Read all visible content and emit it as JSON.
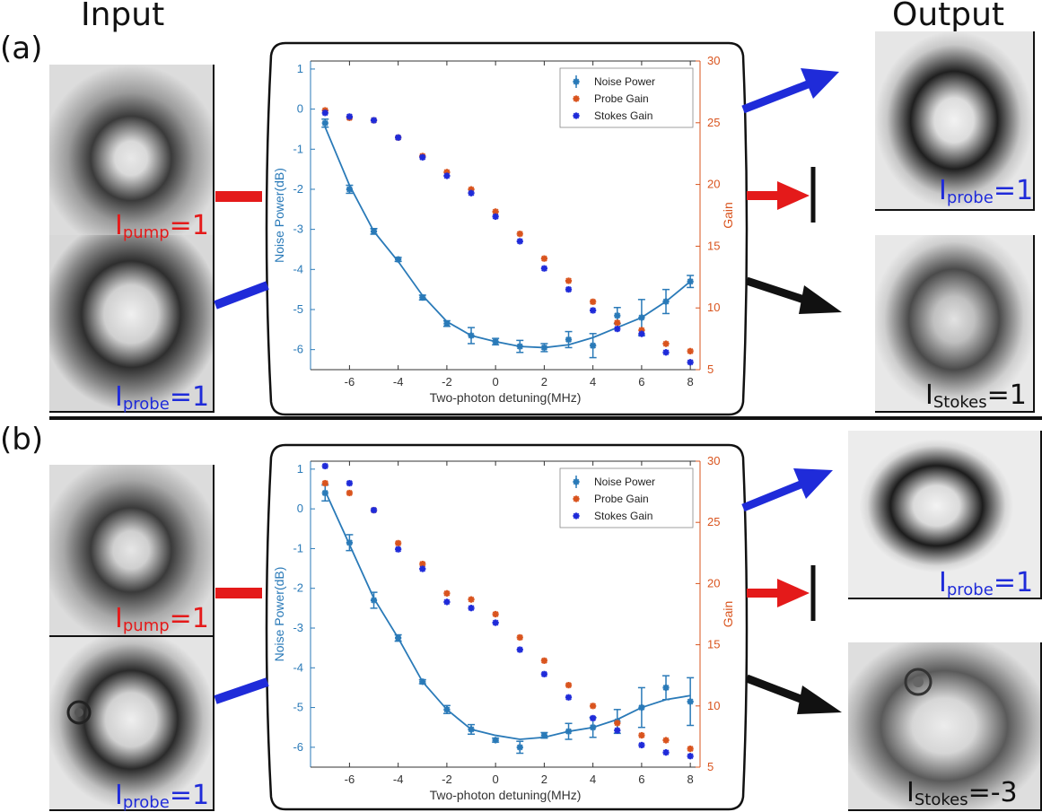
{
  "headers": {
    "input": "Input",
    "output": "Output"
  },
  "panels": [
    {
      "label": "(a)",
      "input_labels": {
        "pump": {
          "symbol": "I",
          "sub": "pump",
          "eq": "=1"
        },
        "probe": {
          "symbol": "I",
          "sub": "probe",
          "eq": "=1"
        }
      },
      "output_labels": {
        "probe": {
          "symbol": "I",
          "sub": "probe",
          "eq": "=1"
        },
        "stokes": {
          "symbol": "I",
          "sub": "Stokes",
          "eq": "=1"
        }
      }
    },
    {
      "label": "(b)",
      "input_labels": {
        "pump": {
          "symbol": "I",
          "sub": "pump",
          "eq": "=1"
        },
        "probe": {
          "symbol": "I",
          "sub": "probe",
          "eq": "=1"
        }
      },
      "output_labels": {
        "probe": {
          "symbol": "I",
          "sub": "probe",
          "eq": "=1"
        },
        "stokes": {
          "symbol": "I",
          "sub": "Stokes",
          "eq": "=-3"
        }
      }
    }
  ],
  "colors": {
    "pump": "#e41a1a",
    "probe": "#1f2bd9",
    "stokes": "#111111",
    "noise": "#2a7ab8",
    "probe_gain": "#d9541e",
    "stokes_gain": "#1f2bd9"
  },
  "chart_data": [
    {
      "type": "scatter",
      "xlabel": "Two-photon detuning(MHz)",
      "ylabel": "Noise Power(dB)",
      "y2label": "Gain",
      "xlim": [
        -7.6,
        8.4
      ],
      "ylim": [
        -6.5,
        1.2
      ],
      "y2lim": [
        5,
        30
      ],
      "xticks": [
        -6,
        -4,
        -2,
        0,
        2,
        4,
        6,
        8
      ],
      "yticks": [
        1,
        0,
        -1,
        -2,
        -3,
        -4,
        -5,
        -6
      ],
      "y2ticks": [
        30,
        25,
        20,
        15,
        10,
        5
      ],
      "legend": [
        "Noise Power",
        "Probe Gain",
        "Stokes Gain"
      ],
      "series": [
        {
          "name": "Noise Power",
          "x": [
            -7,
            -6,
            -5,
            -4,
            -3,
            -2,
            -1,
            0,
            1,
            2,
            3,
            4,
            5,
            6,
            7,
            8
          ],
          "values": [
            -0.35,
            -2.0,
            -3.05,
            -3.75,
            -4.7,
            -5.35,
            -5.65,
            -5.8,
            -5.92,
            -5.95,
            -5.75,
            -5.9,
            -5.15,
            -5.2,
            -4.8,
            -4.3
          ],
          "err": [
            0.1,
            0.1,
            0.07,
            0.05,
            0.06,
            0.07,
            0.2,
            0.08,
            0.15,
            0.1,
            0.2,
            0.3,
            0.2,
            0.45,
            0.3,
            0.15
          ]
        },
        {
          "name": "Noise Power fit",
          "x": [
            -7,
            -6,
            -5,
            -4,
            -3,
            -2,
            -1,
            0,
            1,
            2,
            3,
            4,
            5,
            6,
            7,
            8
          ],
          "values": [
            -0.45,
            -1.9,
            -3.05,
            -3.8,
            -4.65,
            -5.3,
            -5.65,
            -5.8,
            -5.92,
            -5.95,
            -5.88,
            -5.7,
            -5.45,
            -5.2,
            -4.8,
            -4.3
          ]
        },
        {
          "name": "Probe Gain",
          "x": [
            -7,
            -6,
            -5,
            -4,
            -3,
            -2,
            -1,
            0,
            1,
            2,
            3,
            4,
            5,
            6,
            7,
            8
          ],
          "values": [
            26.0,
            25.4,
            25.2,
            23.8,
            22.3,
            21.0,
            19.6,
            17.8,
            16.0,
            14.0,
            12.2,
            10.5,
            8.8,
            8.2,
            7.1,
            6.5
          ]
        },
        {
          "name": "Stokes Gain",
          "x": [
            -7,
            -6,
            -5,
            -4,
            -3,
            -2,
            -1,
            0,
            1,
            2,
            3,
            4,
            5,
            6,
            7,
            8
          ],
          "values": [
            25.8,
            25.5,
            25.2,
            23.8,
            22.2,
            20.7,
            19.3,
            17.4,
            15.4,
            13.2,
            11.5,
            9.8,
            8.3,
            7.9,
            6.4,
            5.6
          ]
        }
      ]
    },
    {
      "type": "scatter",
      "xlabel": "Two-photon detuning(MHz)",
      "ylabel": "Noise Power(dB)",
      "y2label": "Gain",
      "xlim": [
        -7.6,
        8.4
      ],
      "ylim": [
        -6.5,
        1.2
      ],
      "y2lim": [
        5,
        30
      ],
      "xticks": [
        -6,
        -4,
        -2,
        0,
        2,
        4,
        6,
        8
      ],
      "yticks": [
        1,
        0,
        -1,
        -2,
        -3,
        -4,
        -5,
        -6
      ],
      "y2ticks": [
        30,
        25,
        20,
        15,
        10,
        5
      ],
      "legend": [
        "Noise Power",
        "Probe Gain",
        "Stokes Gain"
      ],
      "series": [
        {
          "name": "Noise Power",
          "x": [
            -7,
            -6,
            -5,
            -4,
            -3,
            -2,
            -1,
            0,
            1,
            2,
            3,
            4,
            5,
            6,
            7,
            8
          ],
          "values": [
            0.4,
            -0.85,
            -2.3,
            -3.25,
            -4.35,
            -5.05,
            -5.55,
            -5.82,
            -6.0,
            -5.7,
            -5.6,
            -5.5,
            -5.35,
            -5.0,
            -4.5,
            -4.85
          ],
          "err": [
            0.2,
            0.2,
            0.2,
            0.08,
            0.05,
            0.1,
            0.12,
            0.05,
            0.15,
            0.07,
            0.2,
            0.25,
            0.3,
            0.5,
            0.3,
            0.6
          ]
        },
        {
          "name": "Noise Power fit",
          "x": [
            -7,
            -6,
            -5,
            -4,
            -3,
            -2,
            -1,
            0,
            1,
            2,
            3,
            4,
            5,
            6,
            7,
            8
          ],
          "values": [
            0.45,
            -0.9,
            -2.25,
            -3.25,
            -4.35,
            -5.05,
            -5.55,
            -5.7,
            -5.8,
            -5.75,
            -5.6,
            -5.5,
            -5.3,
            -5.0,
            -4.8,
            -4.7
          ]
        },
        {
          "name": "Probe Gain",
          "x": [
            -7,
            -6,
            -5,
            -4,
            -3,
            -2,
            -1,
            0,
            1,
            2,
            3,
            4,
            5,
            6,
            7,
            8
          ],
          "values": [
            28.2,
            27.4,
            26.0,
            23.3,
            21.6,
            19.2,
            18.7,
            17.5,
            15.6,
            13.7,
            11.7,
            10.0,
            8.6,
            7.6,
            7.2,
            6.5
          ]
        },
        {
          "name": "Stokes Gain",
          "x": [
            -7,
            -6,
            -5,
            -4,
            -3,
            -2,
            -1,
            0,
            1,
            2,
            3,
            4,
            5,
            6,
            7,
            8
          ],
          "values": [
            29.6,
            28.2,
            26.0,
            22.8,
            21.2,
            18.5,
            18.0,
            16.8,
            14.6,
            12.6,
            10.7,
            9.0,
            8.0,
            6.8,
            6.2,
            5.9
          ]
        }
      ]
    }
  ]
}
